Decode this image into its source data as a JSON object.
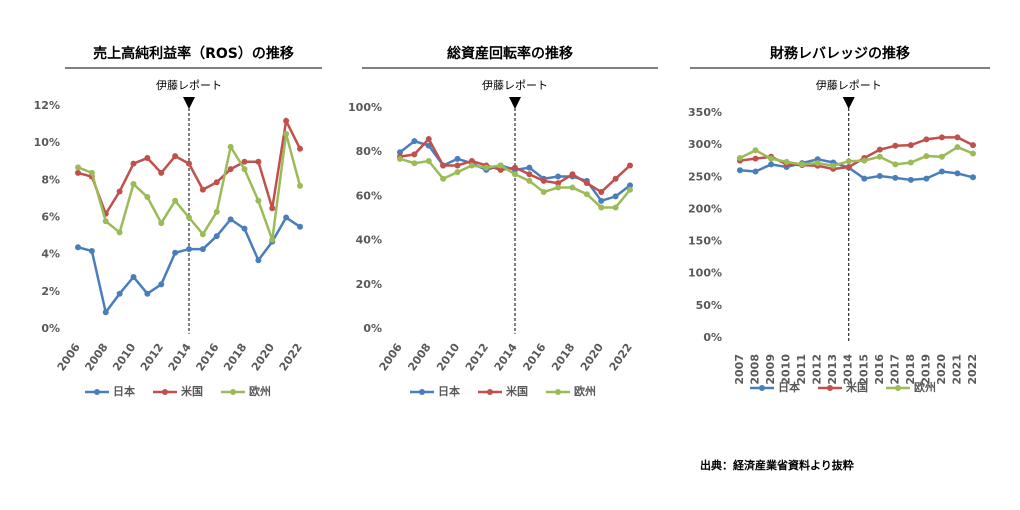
{
  "chart_data": [
    {
      "type": "line",
      "title": "売上高純利益率（ROS）の推移",
      "annotation": {
        "text": "伊藤レポート",
        "x": 2014
      },
      "x": [
        2006,
        2007,
        2008,
        2009,
        2010,
        2011,
        2012,
        2013,
        2014,
        2015,
        2016,
        2017,
        2018,
        2019,
        2020,
        2021,
        2022
      ],
      "xlim": [
        2006,
        2022
      ],
      "xticks": [
        2006,
        2008,
        2010,
        2012,
        2014,
        2016,
        2018,
        2020,
        2022
      ],
      "ylim": [
        0,
        12
      ],
      "yticks": [
        {
          "value": 0,
          "label": "0%"
        },
        {
          "value": 2,
          "label": "2%"
        },
        {
          "value": 4,
          "label": "4%"
        },
        {
          "value": 6,
          "label": "6%"
        },
        {
          "value": 8,
          "label": "8%"
        },
        {
          "value": 10,
          "label": "10%"
        },
        {
          "value": 12,
          "label": "12%"
        }
      ],
      "grid": false,
      "series": [
        {
          "name": "日本",
          "color": "#4a7ebb",
          "values": [
            4.4,
            4.2,
            0.9,
            1.9,
            2.8,
            1.9,
            2.4,
            4.1,
            4.3,
            4.3,
            5.0,
            5.9,
            5.4,
            3.7,
            4.7,
            6.0,
            5.5
          ]
        },
        {
          "name": "米国",
          "color": "#c0504d",
          "values": [
            8.4,
            8.2,
            6.2,
            7.4,
            8.9,
            9.2,
            8.4,
            9.3,
            8.9,
            7.5,
            7.9,
            8.6,
            9.0,
            9.0,
            6.5,
            11.2,
            9.7
          ]
        },
        {
          "name": "欧州",
          "color": "#9bbb59",
          "values": [
            8.7,
            8.4,
            5.8,
            5.2,
            7.8,
            7.1,
            5.7,
            6.9,
            6.0,
            5.1,
            6.3,
            9.8,
            8.6,
            6.9,
            4.8,
            10.5,
            7.7
          ]
        }
      ]
    },
    {
      "type": "line",
      "title": "総資産回転率の推移",
      "annotation": {
        "text": "伊藤レポート",
        "x": 2014
      },
      "x": [
        2006,
        2007,
        2008,
        2009,
        2010,
        2011,
        2012,
        2013,
        2014,
        2015,
        2016,
        2017,
        2018,
        2019,
        2020,
        2021,
        2022
      ],
      "xlim": [
        2006,
        2022
      ],
      "xticks": [
        2006,
        2008,
        2010,
        2012,
        2014,
        2016,
        2018,
        2020,
        2022
      ],
      "ylim": [
        0,
        100
      ],
      "yticks": [
        {
          "value": 0,
          "label": "0%"
        },
        {
          "value": 20,
          "label": "20%"
        },
        {
          "value": 40,
          "label": "40%"
        },
        {
          "value": 60,
          "label": "60%"
        },
        {
          "value": 80,
          "label": "80%"
        },
        {
          "value": 100,
          "label": "100%"
        }
      ],
      "grid": false,
      "series": [
        {
          "name": "日本",
          "color": "#4a7ebb",
          "values": [
            80,
            85,
            83,
            74,
            77,
            75,
            72,
            74,
            72,
            73,
            68,
            69,
            69,
            67,
            58,
            60,
            65
          ]
        },
        {
          "name": "米国",
          "color": "#c0504d",
          "values": [
            78,
            79,
            86,
            74,
            74,
            76,
            74,
            72,
            73,
            70,
            67,
            66,
            70,
            66,
            62,
            68,
            74
          ]
        },
        {
          "name": "欧州",
          "color": "#9bbb59",
          "values": [
            77,
            75,
            76,
            68,
            71,
            74,
            73,
            74,
            70,
            67,
            62,
            64,
            64,
            61,
            55,
            55,
            63
          ]
        }
      ]
    },
    {
      "type": "line",
      "title": "財務レバレッジの推移",
      "annotation": {
        "text": "伊藤レポート",
        "x": 2014
      },
      "x": [
        2007,
        2008,
        2009,
        2010,
        2011,
        2012,
        2013,
        2014,
        2015,
        2016,
        2017,
        2018,
        2019,
        2020,
        2021,
        2022
      ],
      "xlim": [
        2007,
        2022
      ],
      "xticks": [
        2007,
        2008,
        2009,
        2010,
        2011,
        2012,
        2013,
        2014,
        2015,
        2016,
        2017,
        2018,
        2019,
        2020,
        2021,
        2022
      ],
      "ylim": [
        0,
        350
      ],
      "yticks": [
        {
          "value": 0,
          "label": "0%"
        },
        {
          "value": 50,
          "label": "50%"
        },
        {
          "value": 100,
          "label": "100%"
        },
        {
          "value": 150,
          "label": "150%"
        },
        {
          "value": 200,
          "label": "200%"
        },
        {
          "value": 250,
          "label": "250%"
        },
        {
          "value": 300,
          "label": "300%"
        },
        {
          "value": 350,
          "label": "350%"
        }
      ],
      "grid": false,
      "series": [
        {
          "name": "日本",
          "color": "#4a7ebb",
          "values": [
            261,
            259,
            270,
            266,
            272,
            278,
            273,
            265,
            248,
            252,
            249,
            246,
            248,
            259,
            256,
            250
          ]
        },
        {
          "name": "米国",
          "color": "#c0504d",
          "values": [
            276,
            279,
            282,
            270,
            269,
            268,
            263,
            266,
            280,
            293,
            299,
            300,
            309,
            312,
            312,
            300
          ]
        },
        {
          "name": "欧州",
          "color": "#9bbb59",
          "values": [
            280,
            292,
            279,
            274,
            270,
            272,
            268,
            275,
            276,
            282,
            270,
            273,
            283,
            282,
            297,
            287
          ]
        }
      ]
    }
  ],
  "source": "出典：経済産業省資料より抜粋"
}
